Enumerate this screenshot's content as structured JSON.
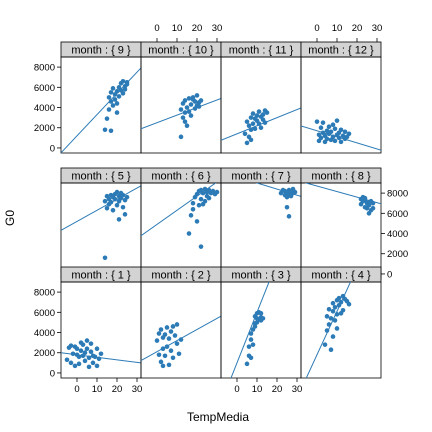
{
  "chart_data": {
    "type": "scatter",
    "layout": "lattice",
    "xlabel": "TempMedia",
    "ylabel": "G0",
    "xlim": [
      -8,
      32
    ],
    "ylim": [
      -500,
      9000
    ],
    "x_ticks": [
      0,
      10,
      20,
      30
    ],
    "y_ticks": [
      0,
      2000,
      4000,
      6000,
      8000
    ],
    "grid": false,
    "colors": {
      "point": "#2c7bb6",
      "line": "#2c7bb6",
      "strip": "#d3d3d3",
      "frame": "#000000"
    },
    "panel_rows": [
      [
        "month : { 9 }",
        "month : { 10 }",
        "month : { 11 }",
        "month : { 12 }"
      ],
      [
        "month : { 5 }",
        "month : { 6 }",
        "month : { 7 }",
        "month : { 8 }"
      ],
      [
        "month : { 1 }",
        "month : { 2 }",
        "month : { 3 }",
        "month : { 4 }"
      ]
    ],
    "panels": [
      {
        "month": 1,
        "line": {
          "slope": -25,
          "intercept": 1800
        },
        "points": [
          [
            -5,
            1300
          ],
          [
            -4,
            2500
          ],
          [
            -3,
            2700
          ],
          [
            -2,
            1900
          ],
          [
            -1,
            2600
          ],
          [
            -1,
            700
          ],
          [
            0,
            2400
          ],
          [
            0,
            1800
          ],
          [
            1,
            900
          ],
          [
            1,
            1600
          ],
          [
            2,
            2200
          ],
          [
            2,
            3000
          ],
          [
            3,
            1700
          ],
          [
            3,
            2800
          ],
          [
            4,
            1200
          ],
          [
            4,
            2000
          ],
          [
            5,
            3200
          ],
          [
            5,
            2400
          ],
          [
            6,
            600
          ],
          [
            6,
            1500
          ],
          [
            7,
            2900
          ],
          [
            7,
            2100
          ],
          [
            8,
            1000
          ],
          [
            8,
            1700
          ],
          [
            9,
            1600
          ],
          [
            10,
            2400
          ],
          [
            10,
            700
          ],
          [
            11,
            1400
          ],
          [
            12,
            1900
          ],
          [
            -3,
            1000
          ]
        ]
      },
      {
        "month": 2,
        "line": {
          "slope": 110,
          "intercept": 2100
        },
        "points": [
          [
            0,
            3200
          ],
          [
            1,
            3900
          ],
          [
            1,
            1800
          ],
          [
            2,
            1100
          ],
          [
            2,
            4300
          ],
          [
            3,
            2400
          ],
          [
            3,
            700
          ],
          [
            4,
            3800
          ],
          [
            4,
            1700
          ],
          [
            5,
            4500
          ],
          [
            5,
            2600
          ],
          [
            6,
            3400
          ],
          [
            6,
            800
          ],
          [
            7,
            4100
          ],
          [
            7,
            2200
          ],
          [
            8,
            4600
          ],
          [
            8,
            1500
          ],
          [
            9,
            3700
          ],
          [
            10,
            2900
          ],
          [
            10,
            4800
          ],
          [
            11,
            1900
          ],
          [
            12,
            3300
          ],
          [
            3,
            3500
          ]
        ]
      },
      {
        "month": 3,
        "line": {
          "slope": 500,
          "intercept": 1000
        },
        "points": [
          [
            5,
            900
          ],
          [
            6,
            1700
          ],
          [
            6,
            2600
          ],
          [
            7,
            3900
          ],
          [
            7,
            1500
          ],
          [
            8,
            4300
          ],
          [
            8,
            2800
          ],
          [
            9,
            5600
          ],
          [
            9,
            4600
          ],
          [
            10,
            5400
          ],
          [
            10,
            5900
          ],
          [
            10,
            5000
          ],
          [
            11,
            6000
          ],
          [
            11,
            5300
          ],
          [
            12,
            5500
          ],
          [
            12,
            5200
          ],
          [
            13,
            5400
          ],
          [
            7,
            3300
          ],
          [
            9,
            4900
          ],
          [
            12,
            5900
          ]
        ]
      },
      {
        "month": 4,
        "line": {
          "slope": 430,
          "intercept": 1800
        },
        "points": [
          [
            4,
            2800
          ],
          [
            5,
            4200
          ],
          [
            5,
            5600
          ],
          [
            6,
            4800
          ],
          [
            6,
            6300
          ],
          [
            7,
            5400
          ],
          [
            7,
            2300
          ],
          [
            8,
            6100
          ],
          [
            8,
            6900
          ],
          [
            9,
            5200
          ],
          [
            9,
            6500
          ],
          [
            10,
            7200
          ],
          [
            10,
            5800
          ],
          [
            11,
            7400
          ],
          [
            11,
            6700
          ],
          [
            12,
            7000
          ],
          [
            12,
            5900
          ],
          [
            13,
            7600
          ],
          [
            13,
            6200
          ],
          [
            14,
            7300
          ],
          [
            15,
            7100
          ],
          [
            16,
            6800
          ],
          [
            8,
            3600
          ],
          [
            10,
            4400
          ]
        ]
      },
      {
        "month": 5,
        "line": {
          "slope": 110,
          "intercept": 5200
        },
        "points": [
          [
            14,
            1600
          ],
          [
            14,
            7200
          ],
          [
            15,
            6500
          ],
          [
            15,
            7700
          ],
          [
            16,
            7400
          ],
          [
            16,
            6900
          ],
          [
            17,
            7800
          ],
          [
            17,
            7100
          ],
          [
            18,
            7600
          ],
          [
            18,
            6300
          ],
          [
            19,
            7900
          ],
          [
            19,
            7400
          ],
          [
            20,
            8100
          ],
          [
            20,
            6800
          ],
          [
            21,
            7700
          ],
          [
            21,
            7200
          ],
          [
            22,
            7500
          ],
          [
            22,
            8000
          ],
          [
            23,
            6600
          ],
          [
            23,
            7800
          ],
          [
            24,
            7300
          ],
          [
            24,
            5900
          ],
          [
            25,
            7600
          ],
          [
            21,
            5400
          ]
        ]
      },
      {
        "month": 6,
        "line": {
          "slope": 140,
          "intercept": 4900
        },
        "points": [
          [
            16,
            4000
          ],
          [
            17,
            5800
          ],
          [
            18,
            7000
          ],
          [
            18,
            6400
          ],
          [
            19,
            7600
          ],
          [
            20,
            5200
          ],
          [
            20,
            7900
          ],
          [
            21,
            6800
          ],
          [
            21,
            8200
          ],
          [
            22,
            7400
          ],
          [
            22,
            8300
          ],
          [
            23,
            8000
          ],
          [
            23,
            6900
          ],
          [
            24,
            8400
          ],
          [
            25,
            8100
          ],
          [
            25,
            7700
          ],
          [
            26,
            8300
          ],
          [
            27,
            8000
          ],
          [
            28,
            8200
          ],
          [
            29,
            7900
          ],
          [
            30,
            8100
          ],
          [
            22,
            2700
          ],
          [
            24,
            7200
          ],
          [
            26,
            7500
          ]
        ]
      },
      {
        "month": 7,
        "line": {
          "slope": -60,
          "intercept": 9600
        },
        "points": [
          [
            22,
            8000
          ],
          [
            23,
            8300
          ],
          [
            24,
            7800
          ],
          [
            24,
            8200
          ],
          [
            25,
            8100
          ],
          [
            25,
            7600
          ],
          [
            26,
            8300
          ],
          [
            26,
            7900
          ],
          [
            27,
            8200
          ],
          [
            27,
            7700
          ],
          [
            28,
            8000
          ],
          [
            28,
            8400
          ],
          [
            29,
            8100
          ],
          [
            26,
            5700
          ],
          [
            25,
            6600
          ],
          [
            27,
            8200
          ]
        ]
      },
      {
        "month": 8,
        "line": {
          "slope": -55,
          "intercept": 8700
        },
        "points": [
          [
            22,
            7400
          ],
          [
            22,
            6900
          ],
          [
            23,
            7200
          ],
          [
            23,
            7600
          ],
          [
            24,
            6600
          ],
          [
            24,
            7300
          ],
          [
            25,
            7000
          ],
          [
            25,
            6500
          ],
          [
            26,
            7100
          ],
          [
            26,
            6800
          ],
          [
            27,
            6300
          ],
          [
            27,
            7200
          ],
          [
            28,
            7000
          ],
          [
            26,
            6000
          ],
          [
            24,
            7500
          ],
          [
            28,
            6500
          ]
        ]
      },
      {
        "month": 9,
        "line": {
          "slope": 210,
          "intercept": 1200
        },
        "points": [
          [
            14,
            1800
          ],
          [
            15,
            2900
          ],
          [
            16,
            5000
          ],
          [
            16,
            3800
          ],
          [
            17,
            4600
          ],
          [
            17,
            5500
          ],
          [
            18,
            4200
          ],
          [
            18,
            5900
          ],
          [
            19,
            5300
          ],
          [
            19,
            4800
          ],
          [
            20,
            5600
          ],
          [
            20,
            3500
          ],
          [
            21,
            6000
          ],
          [
            21,
            5100
          ],
          [
            22,
            5700
          ],
          [
            22,
            6400
          ],
          [
            23,
            5400
          ],
          [
            23,
            6600
          ],
          [
            24,
            6100
          ],
          [
            24,
            5800
          ],
          [
            25,
            6500
          ],
          [
            25,
            6300
          ],
          [
            17,
            1700
          ],
          [
            20,
            4400
          ]
        ]
      },
      {
        "month": 10,
        "line": {
          "slope": 75,
          "intercept": 2500
        },
        "points": [
          [
            12,
            1100
          ],
          [
            12,
            3800
          ],
          [
            13,
            3000
          ],
          [
            13,
            4400
          ],
          [
            14,
            3500
          ],
          [
            14,
            4700
          ],
          [
            15,
            2200
          ],
          [
            15,
            4000
          ],
          [
            16,
            3600
          ],
          [
            16,
            4900
          ],
          [
            17,
            4300
          ],
          [
            17,
            3200
          ],
          [
            18,
            4800
          ],
          [
            18,
            5000
          ],
          [
            19,
            3900
          ],
          [
            19,
            4600
          ],
          [
            20,
            4200
          ],
          [
            20,
            5200
          ],
          [
            21,
            4500
          ],
          [
            21,
            4100
          ],
          [
            22,
            4700
          ],
          [
            14,
            2600
          ]
        ]
      },
      {
        "month": 11,
        "line": {
          "slope": 80,
          "intercept": 1400
        },
        "points": [
          [
            4,
            1400
          ],
          [
            5,
            2600
          ],
          [
            6,
            1100
          ],
          [
            6,
            2200
          ],
          [
            7,
            3000
          ],
          [
            7,
            1800
          ],
          [
            8,
            2400
          ],
          [
            8,
            3400
          ],
          [
            9,
            1900
          ],
          [
            9,
            2900
          ],
          [
            10,
            2700
          ],
          [
            10,
            3200
          ],
          [
            11,
            3600
          ],
          [
            11,
            2400
          ],
          [
            12,
            3100
          ],
          [
            12,
            2000
          ],
          [
            13,
            3300
          ],
          [
            13,
            2800
          ],
          [
            14,
            3700
          ],
          [
            14,
            2500
          ],
          [
            15,
            3500
          ],
          [
            5,
            500
          ],
          [
            7,
            800
          ]
        ]
      },
      {
        "month": 12,
        "line": {
          "slope": -60,
          "intercept": 1700
        },
        "points": [
          [
            0,
            2600
          ],
          [
            1,
            1300
          ],
          [
            1,
            700
          ],
          [
            2,
            2000
          ],
          [
            2,
            1000
          ],
          [
            3,
            1500
          ],
          [
            3,
            2500
          ],
          [
            4,
            600
          ],
          [
            4,
            1200
          ],
          [
            5,
            1700
          ],
          [
            5,
            900
          ],
          [
            6,
            2100
          ],
          [
            6,
            1400
          ],
          [
            7,
            800
          ],
          [
            7,
            1600
          ],
          [
            8,
            1100
          ],
          [
            8,
            2300
          ],
          [
            9,
            1900
          ],
          [
            9,
            700
          ],
          [
            10,
            1300
          ],
          [
            10,
            2700
          ],
          [
            11,
            1000
          ],
          [
            11,
            1500
          ],
          [
            12,
            600
          ],
          [
            12,
            1800
          ],
          [
            13,
            1200
          ],
          [
            14,
            900
          ],
          [
            14,
            1600
          ],
          [
            15,
            1100
          ],
          [
            16,
            1400
          ]
        ]
      }
    ]
  }
}
